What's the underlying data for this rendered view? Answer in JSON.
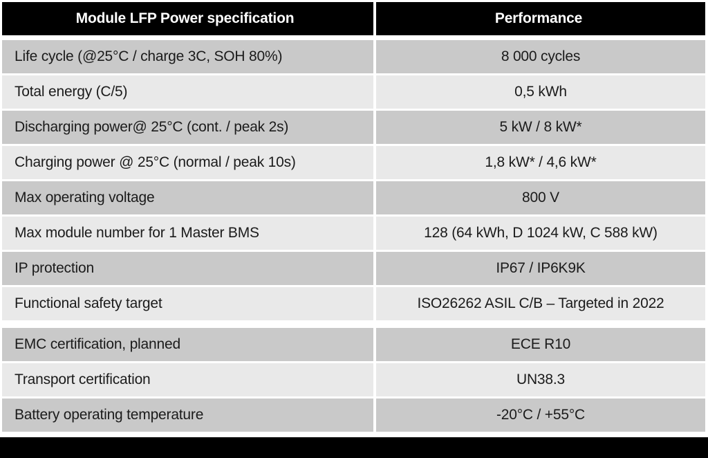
{
  "table": {
    "header": {
      "col1": "Module LFP Power specification",
      "col2": "Performance"
    },
    "sections": [
      {
        "rows": [
          {
            "spec": "Life cycle (@25°C / charge 3C, SOH 80%)",
            "value": "8 000 cycles"
          },
          {
            "spec": "Total energy (C/5)",
            "value": "0,5 kWh"
          },
          {
            "spec": "Discharging power@ 25°C (cont. / peak 2s)",
            "value": "5 kW / 8 kW*"
          },
          {
            "spec": "Charging power @ 25°C (normal / peak 10s)",
            "value": "1,8 kW* / 4,6 kW*"
          },
          {
            "spec": "Max operating voltage",
            "value": "800 V"
          },
          {
            "spec": "Max module number for 1 Master BMS",
            "value": "128 (64 kWh, D 1024 kW, C 588 kW)"
          },
          {
            "spec": "IP protection",
            "value": "IP67 / IP6K9K"
          },
          {
            "spec": "Functional safety target",
            "value": "ISO26262 ASIL C/B – Targeted in 2022"
          }
        ]
      },
      {
        "rows": [
          {
            "spec": "EMC certification, planned",
            "value": "ECE R10"
          },
          {
            "spec": "Transport certification",
            "value": "UN38.3"
          },
          {
            "spec": "Battery operating temperature",
            "value": "-20°C / +55°C"
          }
        ]
      }
    ],
    "colors": {
      "header_bg": "#000000",
      "header_text": "#ffffff",
      "row_dark": "#c9c9c9",
      "row_light": "#e9e9e9",
      "body_text": "#1b1b1b",
      "footer_bg": "#000000",
      "page_bg": "#ffffff"
    }
  }
}
